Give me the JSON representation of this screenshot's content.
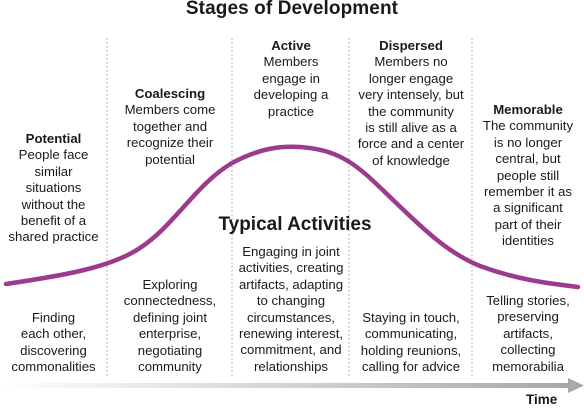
{
  "title": "Stages of Development",
  "typical_activities_label": "Typical Activities",
  "time_label": "Time",
  "colors": {
    "curve": "#9b3b8e",
    "divider": "#9a9a9a",
    "axis": "#b0b0b0"
  },
  "stages": [
    {
      "name": "Potential",
      "description": "People face\nsimilar\nsituations\nwithout the\nbenefit of a\nshared practice",
      "activities": "Finding\neach other,\ndiscovering\ncommonalities"
    },
    {
      "name": "Coalescing",
      "description": "Members come\ntogether and\nrecognize their\npotential",
      "activities": "Exploring\nconnectedness,\ndefining joint\nenterprise,\nnegotiating\ncommunity"
    },
    {
      "name": "Active",
      "description": "Members\nengage in\ndeveloping a\npractice",
      "activities": "Engaging in joint\nactivities, creating\nartifacts, adapting\nto changing\ncircumstances,\nrenewing interest,\ncommitment, and\nrelationships"
    },
    {
      "name": "Dispersed",
      "description": "Members no\nlonger engage\nvery intensely, but\nthe community\nis still alive as a\nforce and a center\nof knowledge",
      "activities": "Staying in touch,\ncommunicating,\nholding reunions,\ncalling for advice"
    },
    {
      "name": "Memorable",
      "description": "The community\nis no longer\ncentral, but\npeople still\nremember it as\na significant\npart of their\nidentities",
      "activities": "Telling stories,\npreserving\nartifacts,\ncollecting\nmemorabilia"
    }
  ]
}
